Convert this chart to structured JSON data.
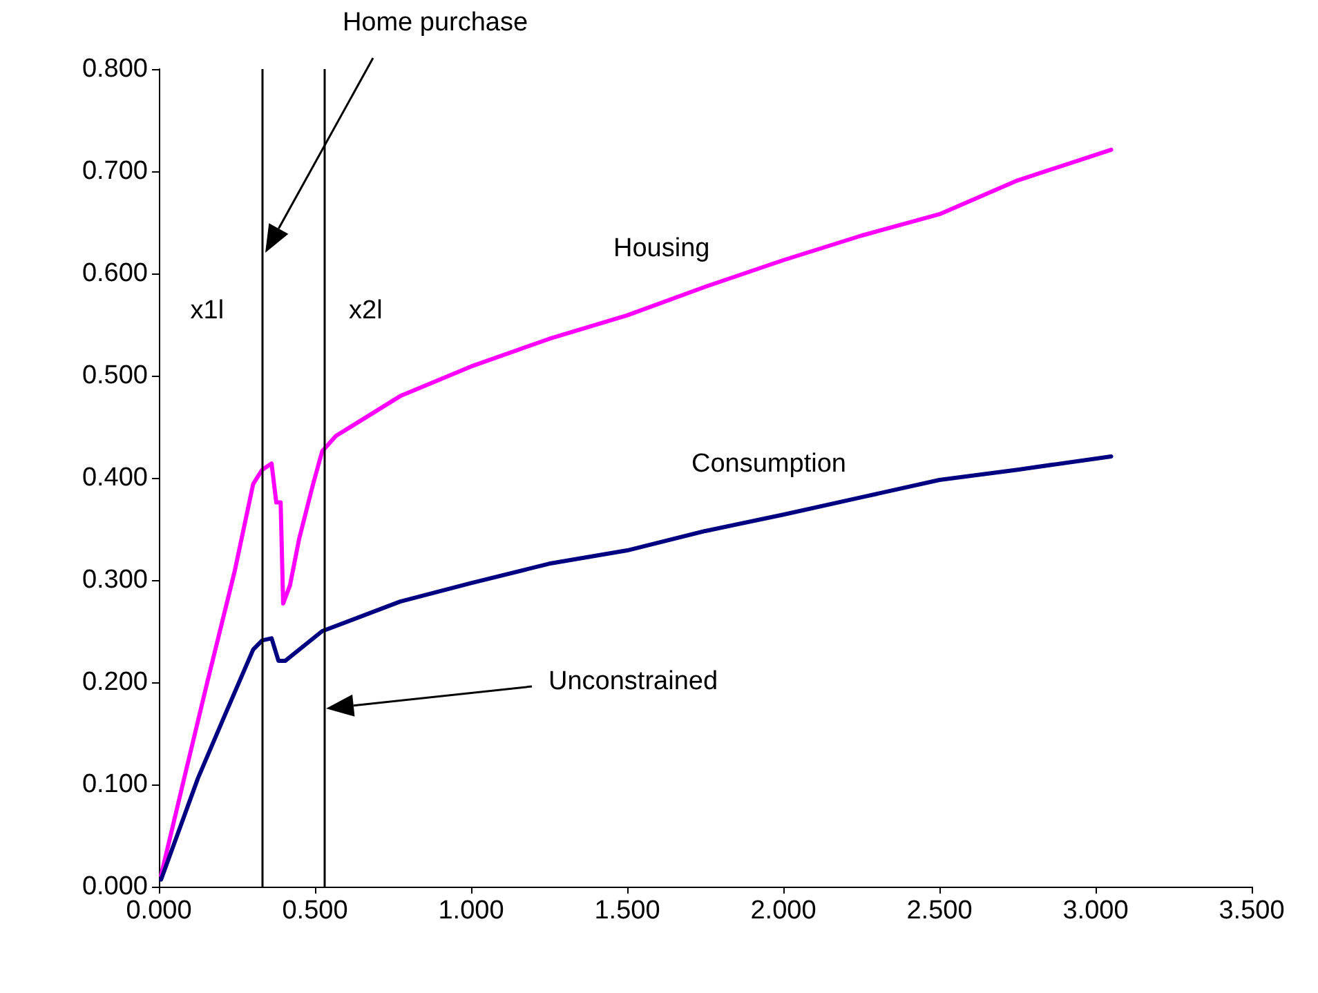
{
  "chart_data": {
    "type": "line",
    "legend": false,
    "grid": false,
    "marker": "none",
    "line_style": "solid",
    "xlim": [
      0,
      3.5
    ],
    "xticks": [
      {
        "value": 0,
        "label": "0.000"
      },
      {
        "value": 0.5,
        "label": "0.500"
      },
      {
        "value": 1,
        "label": "1.000"
      },
      {
        "value": 1.5,
        "label": "1.500"
      },
      {
        "value": 2,
        "label": "2.000"
      },
      {
        "value": 2.5,
        "label": "2.500"
      },
      {
        "value": 3,
        "label": "3.000"
      },
      {
        "value": 3.5,
        "label": "3.500"
      }
    ],
    "ylim": [
      0,
      0.8
    ],
    "yticks": [
      {
        "value": 0,
        "label": "0.000"
      },
      {
        "value": 0.1,
        "label": "0.100"
      },
      {
        "value": 0.2,
        "label": "0.200"
      },
      {
        "value": 0.3,
        "label": "0.300"
      },
      {
        "value": 0.4,
        "label": "0.400"
      },
      {
        "value": 0.5,
        "label": "0.500"
      },
      {
        "value": 0.6,
        "label": "0.600"
      },
      {
        "value": 0.7,
        "label": "0.700"
      },
      {
        "value": 0.8,
        "label": "0.800"
      }
    ],
    "series": [
      {
        "name": "Housing",
        "color": "#ff00ff",
        "x": [
          0.007,
          0.081,
          0.155,
          0.243,
          0.302,
          0.331,
          0.361,
          0.376,
          0.39,
          0.398,
          0.42,
          0.449,
          0.494,
          0.523,
          0.567,
          0.773,
          1.0,
          1.25,
          1.5,
          1.75,
          2.0,
          2.25,
          2.5,
          2.75,
          3.05
        ],
        "values": [
          0.011,
          0.106,
          0.2,
          0.309,
          0.394,
          0.408,
          0.414,
          0.376,
          0.376,
          0.277,
          0.295,
          0.34,
          0.394,
          0.426,
          0.441,
          0.48,
          0.509,
          0.536,
          0.559,
          0.587,
          0.613,
          0.637,
          0.658,
          0.691,
          0.721
        ]
      },
      {
        "name": "Consumption",
        "color": "#000080",
        "x": [
          0.007,
          0.125,
          0.213,
          0.302,
          0.331,
          0.361,
          0.383,
          0.405,
          0.523,
          0.773,
          1.0,
          1.25,
          1.5,
          1.75,
          2.0,
          2.25,
          2.5,
          2.75,
          3.05
        ],
        "values": [
          0.007,
          0.106,
          0.169,
          0.232,
          0.241,
          0.243,
          0.221,
          0.221,
          0.25,
          0.279,
          0.297,
          0.316,
          0.329,
          0.348,
          0.364,
          0.381,
          0.398,
          0.408,
          0.421
        ]
      }
    ],
    "ref_lines": [
      {
        "axis": "x",
        "value": 0.331,
        "label": "x1l",
        "color": "#000000"
      },
      {
        "axis": "x",
        "value": 0.529,
        "label": "x2l",
        "color": "#000000"
      }
    ],
    "annotations": [
      "Home purchase",
      "Unconstrained"
    ]
  }
}
